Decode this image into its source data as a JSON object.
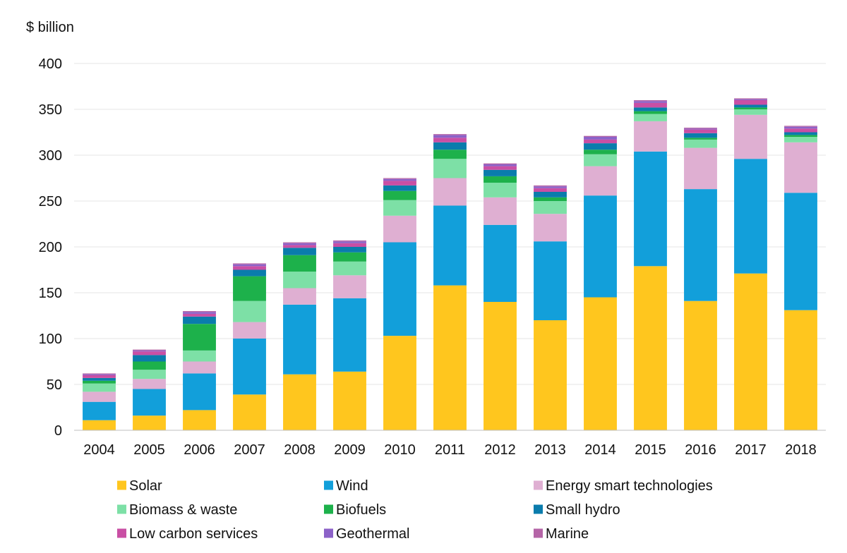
{
  "chart_data": {
    "type": "bar",
    "stacked": true,
    "ylabel": "$ billion",
    "ylim": [
      0,
      400
    ],
    "yticks": [
      0,
      50,
      100,
      150,
      200,
      250,
      300,
      350,
      400
    ],
    "grid": true,
    "legend_position": "bottom",
    "categories": [
      "2004",
      "2005",
      "2006",
      "2007",
      "2008",
      "2009",
      "2010",
      "2011",
      "2012",
      "2013",
      "2014",
      "2015",
      "2016",
      "2017",
      "2018"
    ],
    "series": [
      {
        "name": "Solar",
        "color": "#FFC61E",
        "values": [
          11,
          16,
          22,
          39,
          61,
          64,
          103,
          158,
          140,
          120,
          145,
          179,
          141,
          171,
          131
        ]
      },
      {
        "name": "Wind",
        "color": "#129FDA",
        "values": [
          20,
          29,
          40,
          61,
          76,
          80,
          102,
          87,
          84,
          86,
          111,
          125,
          122,
          125,
          128
        ]
      },
      {
        "name": "Energy smart technologies",
        "color": "#DFAFD2",
        "values": [
          11,
          11,
          13,
          18,
          18,
          25,
          29,
          30,
          30,
          30,
          32,
          33,
          45,
          48,
          55
        ]
      },
      {
        "name": "Biomass & waste",
        "color": "#7DE0A6",
        "values": [
          9,
          10,
          12,
          23,
          18,
          15,
          17,
          21,
          16,
          14,
          13,
          8,
          9,
          6,
          6
        ]
      },
      {
        "name": "Biofuels",
        "color": "#1DB14B",
        "values": [
          3,
          9,
          29,
          27,
          18,
          10,
          10,
          10,
          7,
          4,
          5,
          3,
          2,
          2,
          2
        ]
      },
      {
        "name": "Small hydro",
        "color": "#0A7CAC",
        "values": [
          3,
          7,
          8,
          7,
          8,
          6,
          6,
          8,
          7,
          6,
          7,
          4,
          5,
          3,
          3
        ]
      },
      {
        "name": "Low carbon services",
        "color": "#C94FA4",
        "values": [
          3,
          4,
          3,
          4,
          3,
          4,
          5,
          5,
          4,
          4,
          4,
          5,
          4,
          5,
          4
        ]
      },
      {
        "name": "Geothermal",
        "color": "#8C62C8",
        "values": [
          1,
          1,
          2,
          2,
          2,
          2,
          2,
          3,
          2,
          2,
          3,
          2,
          1,
          1,
          2
        ]
      },
      {
        "name": "Marine",
        "color": "#B565A7",
        "values": [
          1,
          1,
          1,
          1,
          1,
          1,
          1,
          1,
          1,
          1,
          1,
          1,
          1,
          1,
          1
        ]
      }
    ]
  }
}
